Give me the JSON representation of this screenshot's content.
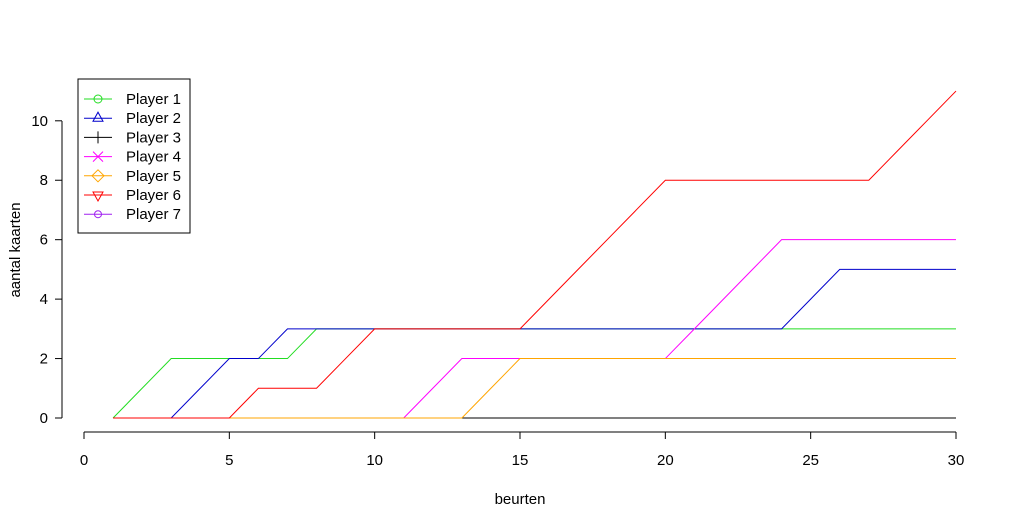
{
  "chart_data": {
    "type": "line",
    "title": "",
    "xlabel": "beurten",
    "ylabel": "aantal kaarten",
    "xlim": [
      0,
      30
    ],
    "ylim": [
      0,
      11
    ],
    "grid": false,
    "legend_position": "topleft",
    "x_ticks": [
      0,
      5,
      10,
      15,
      20,
      25,
      30
    ],
    "y_ticks": [
      0,
      2,
      4,
      6,
      8,
      10
    ],
    "x": [
      1,
      2,
      3,
      4,
      5,
      6,
      7,
      8,
      9,
      10,
      11,
      12,
      13,
      14,
      15,
      16,
      17,
      18,
      19,
      20,
      21,
      22,
      23,
      24,
      25,
      26,
      27,
      28,
      29,
      30
    ],
    "series": [
      {
        "name": "Player 1",
        "color": "#22DD22",
        "marker": "circle",
        "values": [
          0,
          1,
          2,
          2,
          2,
          2,
          2,
          3,
          3,
          3,
          3,
          3,
          3,
          3,
          3,
          3,
          3,
          3,
          3,
          3,
          3,
          3,
          3,
          3,
          3,
          3,
          3,
          3,
          3,
          3
        ]
      },
      {
        "name": "Player 2",
        "color": "#0000CC",
        "marker": "triangle-up",
        "values": [
          0,
          0,
          0,
          1,
          2,
          2,
          3,
          3,
          3,
          3,
          3,
          3,
          3,
          3,
          3,
          3,
          3,
          3,
          3,
          3,
          3,
          3,
          3,
          3,
          4,
          5,
          5,
          5,
          5,
          5
        ]
      },
      {
        "name": "Player 3",
        "color": "#000000",
        "marker": "plus",
        "values": [
          0,
          0,
          0,
          0,
          0,
          0,
          0,
          0,
          0,
          0,
          0,
          0,
          0,
          0,
          0,
          0,
          0,
          0,
          0,
          0,
          0,
          0,
          0,
          0,
          0,
          0,
          0,
          0,
          0,
          0
        ]
      },
      {
        "name": "Player 4",
        "color": "#FF00FF",
        "marker": "x",
        "values": [
          0,
          0,
          0,
          0,
          0,
          0,
          0,
          0,
          0,
          0,
          0,
          1,
          2,
          2,
          2,
          2,
          2,
          2,
          2,
          2,
          3,
          4,
          5,
          6,
          6,
          6,
          6,
          6,
          6,
          6
        ]
      },
      {
        "name": "Player 5",
        "color": "#FFA500",
        "marker": "diamond",
        "values": [
          0,
          0,
          0,
          0,
          0,
          0,
          0,
          0,
          0,
          0,
          0,
          0,
          0,
          1,
          2,
          2,
          2,
          2,
          2,
          2,
          2,
          2,
          2,
          2,
          2,
          2,
          2,
          2,
          2,
          2
        ]
      },
      {
        "name": "Player 6",
        "color": "#FF0000",
        "marker": "triangle-down",
        "values": [
          0,
          0,
          0,
          0,
          0,
          1,
          1,
          1,
          2,
          3,
          3,
          3,
          3,
          3,
          3,
          4,
          5,
          6,
          7,
          8,
          8,
          8,
          8,
          8,
          8,
          8,
          8,
          9,
          10,
          11
        ]
      },
      {
        "name": "Player 7",
        "color": "#A020F0",
        "marker": "circle-small",
        "values": [],
        "visible": false
      }
    ]
  },
  "legend": {
    "items": [
      "Player 1",
      "Player 2",
      "Player 3",
      "Player 4",
      "Player 5",
      "Player 6",
      "Player 7"
    ]
  },
  "axes": {
    "x_title": "beurten",
    "y_title": "aantal kaarten"
  }
}
